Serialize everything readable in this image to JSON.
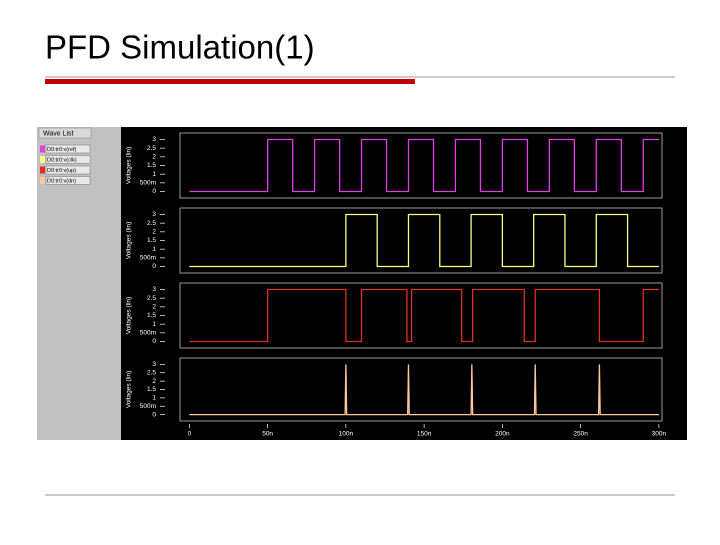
{
  "title": "PFD Simulation(1)",
  "wave_list": {
    "tab": "Wave List"
  },
  "chart_data": [
    {
      "type": "line",
      "ylabel": "Voltages (lin)",
      "xlim": [
        -6,
        302
      ],
      "ylim": [
        -0.2,
        3.2
      ],
      "yticks": [
        0,
        {
          "value": 0.5,
          "label": "500m"
        },
        1,
        1.5,
        2,
        2.5,
        3
      ],
      "x": [
        0,
        50,
        50,
        66,
        66,
        80,
        80,
        96,
        96,
        110,
        110,
        126,
        126,
        140,
        140,
        156,
        156,
        170,
        170,
        186,
        186,
        200,
        200,
        216,
        216,
        230,
        230,
        246,
        246,
        260,
        260,
        276,
        276,
        290,
        290,
        300
      ],
      "series": [
        {
          "name": "D0:tr0:v(ref)",
          "color": "#e040e0",
          "values": [
            0,
            0,
            3,
            3,
            0,
            0,
            3,
            3,
            0,
            0,
            3,
            3,
            0,
            0,
            3,
            3,
            0,
            0,
            3,
            3,
            0,
            0,
            3,
            3,
            0,
            0,
            3,
            3,
            0,
            0,
            3,
            3,
            0,
            0,
            3,
            3
          ]
        }
      ]
    },
    {
      "type": "line",
      "ylabel": "Voltages (lin)",
      "xlim": [
        -6,
        302
      ],
      "ylim": [
        -0.2,
        3.2
      ],
      "yticks": [
        0,
        {
          "value": 0.5,
          "label": "500m"
        },
        1,
        1.5,
        2,
        2.5,
        3
      ],
      "x": [
        0,
        100,
        100,
        120,
        120,
        140,
        140,
        160,
        160,
        180,
        180,
        200,
        200,
        220,
        220,
        240,
        240,
        260,
        260,
        280,
        280,
        300
      ],
      "series": [
        {
          "name": "D0:tr0:v(clk)",
          "color": "#ffff80",
          "values": [
            0,
            0,
            3,
            3,
            0,
            0,
            3,
            3,
            0,
            0,
            3,
            3,
            0,
            0,
            3,
            3,
            0,
            0,
            3,
            3,
            0,
            0
          ]
        }
      ]
    },
    {
      "type": "line",
      "ylabel": "Voltages (lin)",
      "xlim": [
        -6,
        302
      ],
      "ylim": [
        -0.2,
        3.2
      ],
      "yticks": [
        0,
        {
          "value": 0.5,
          "label": "500m"
        },
        1,
        1.5,
        2,
        2.5,
        3
      ],
      "x": [
        0,
        50,
        50,
        100,
        100,
        110,
        110,
        139,
        139,
        142,
        142,
        174,
        174,
        181,
        181,
        214,
        214,
        221,
        221,
        262,
        262,
        290,
        290,
        300
      ],
      "series": [
        {
          "name": "D0:tr0:v(up)",
          "color": "#e03020",
          "values": [
            0,
            0,
            3,
            3,
            0,
            0,
            3,
            3,
            0,
            0,
            3,
            3,
            0,
            0,
            3,
            3,
            0,
            0,
            3,
            3,
            0,
            0,
            3,
            3
          ]
        }
      ]
    },
    {
      "type": "line",
      "ylabel": "Voltages (lin)",
      "xlim": [
        -6,
        302
      ],
      "ylim": [
        -0.2,
        3.2
      ],
      "yticks": [
        0,
        {
          "value": 0.5,
          "label": "500m"
        },
        1,
        1.5,
        2,
        2.5,
        3
      ],
      "xticks": [
        0,
        {
          "value": 50,
          "label": "50n"
        },
        {
          "value": 100,
          "label": "100n"
        },
        {
          "value": 150,
          "label": "150n"
        },
        {
          "value": 200,
          "label": "200n"
        },
        {
          "value": 250,
          "label": "250n"
        },
        {
          "value": 300,
          "label": "300n"
        }
      ],
      "x": [
        0,
        99.5,
        100,
        100.5,
        139.5,
        140,
        140.5,
        180,
        180.5,
        181,
        220.5,
        221,
        221.5,
        261.5,
        262,
        262.5,
        300
      ],
      "series": [
        {
          "name": "D0:tr0:v(dn)",
          "color": "#ffc8a0",
          "values": [
            0,
            0,
            3,
            0,
            0,
            3,
            0,
            0,
            3,
            0,
            0,
            3,
            0,
            0,
            3,
            0,
            0
          ]
        }
      ]
    }
  ]
}
